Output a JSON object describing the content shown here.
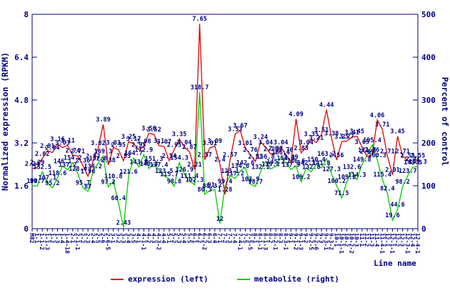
{
  "chart_data": {
    "type": "line",
    "title": "",
    "xlabel": "Line name",
    "ylabel_left": "Normalized expression (RPKM)",
    "ylabel_right": "Percent of control",
    "y_left_range": [
      0,
      8
    ],
    "y_right_range": [
      0,
      500
    ],
    "y_left_ticks": [
      "0",
      "1.6",
      "3.2",
      "4.8",
      "6.4",
      "8"
    ],
    "y_right_ticks": [
      "0",
      "100",
      "200",
      "300",
      "400",
      "500"
    ],
    "grid": false,
    "legend_position": "bottom-center",
    "point_labels_shown": true,
    "categories": [
      "M82",
      "1-1",
      "1-1-2",
      "1-1-3",
      "1-2",
      "1-3",
      "1-4",
      "1-4-18",
      "2-1",
      "2-1-1",
      "2-2",
      "2-3",
      "2-4",
      "2-5",
      "2-6",
      "2-6-5",
      "3-1",
      "3-2",
      "3-3",
      "3-4",
      "3-5",
      "4-1",
      "4-1-1",
      "4-2",
      "4-3",
      "4-3-2",
      "4-4",
      "5-1",
      "5-2",
      "5-3",
      "5-4",
      "5-5",
      "6-1",
      "6-2",
      "6-2-2",
      "6-3",
      "6-4",
      "7-1",
      "7-2",
      "7-3",
      "7-4",
      "7-4-1",
      "7-5",
      "7-5-5",
      "8-1",
      "8-1-1",
      "8-1-3",
      "8-2",
      "8-2-1",
      "8-3",
      "8-3-1",
      "9-1",
      "9-1-2",
      "9-1-3",
      "9-2",
      "9-2-5",
      "9-2-6",
      "9-3",
      "9-3-1",
      "9-3-2",
      "10-1",
      "10-1-1",
      "10-2",
      "10-2-2",
      "10-3",
      "11-1",
      "11-2",
      "11-3",
      "11-4",
      "11-4-1",
      "12-1",
      "12-1-1",
      "12-2",
      "12-3",
      "12-3-1",
      "12-4",
      "12-4-1"
    ],
    "series": [
      {
        "name": "expression (left)",
        "axis": "left",
        "color": "#e00000",
        "values": [
          2.24,
          2.29,
          2.62,
          2.91,
          2.84,
          3.16,
          3.03,
          3.11,
          2.74,
          2.71,
          2.36,
          1.96,
          2.52,
          3.02,
          3.89,
          2.38,
          3.03,
          2.95,
          2.53,
          3.25,
          3.17,
          2.95,
          3.08,
          3.56,
          3.52,
          3.1,
          3.07,
          2.54,
          2.95,
          3.35,
          3.04,
          2.87,
          2.21,
          7.65,
          2.57,
          3.01,
          3.09,
          2.4,
          1.28,
          2.57,
          3.53,
          3.67,
          3.01,
          2.76,
          2.51,
          3.24,
          3.04,
          2.79,
          2.82,
          3.04,
          2.76,
          2.49,
          4.09,
          2.83,
          3.04,
          3.35,
          3.21,
          3.51,
          4.44,
          3.38,
          2.56,
          3.25,
          3.27,
          3.41,
          3.45,
          3.05,
          2.69,
          2.76,
          4.06,
          3.71,
          2.71,
          2.01,
          3.45,
          2.71,
          2.55,
          2.41,
          2.55
        ]
      },
      {
        "name": "metabolite (right)",
        "axis": "right",
        "color": "#00cc00",
        "values": [
          100,
          99.7,
          132.5,
          107.1,
          95.2,
          118.6,
          146.1,
          137.2,
          154.2,
          128.4,
          95.7,
          87,
          134.2,
          152.8,
          169.3,
          97.2,
          110.8,
          60.4,
          2.43,
          121.6,
          164.7,
          143.9,
          172.9,
          140.3,
          151.3,
          137.4,
          123.5,
          115.7,
          98.8,
          154.3,
          126.9,
          111.4,
          102.3,
          318.7,
          80.3,
          88.3,
          91.2,
          12,
          99.4,
          123.1,
          117.2,
          134.6,
          142.6,
          103.9,
          98.7,
          132.1,
          156.8,
          139.1,
          145.2,
          166.4,
          153.3,
          137.9,
          146.6,
          109.2,
          142.1,
          132.8,
          150.4,
          141.8,
          163.2,
          127.3,
          100.2,
          71.5,
          109.2,
          132.6,
          114.3,
          149.8,
          171.3,
          195.4,
          160.3,
          115.4,
          82.4,
          19.6,
          44.6,
          98.2,
          123.7,
          143.3,
          145.3
        ]
      }
    ]
  },
  "legend": {
    "items": [
      {
        "label": "expression (left)",
        "color": "#e00000"
      },
      {
        "label": "metabolite (right)",
        "color": "#00cc00"
      }
    ]
  },
  "colors": {
    "axis": "#000080",
    "point_label": "#000080",
    "background": "#ffffff",
    "expression": "#e00000",
    "metabolite": "#00cc00"
  }
}
